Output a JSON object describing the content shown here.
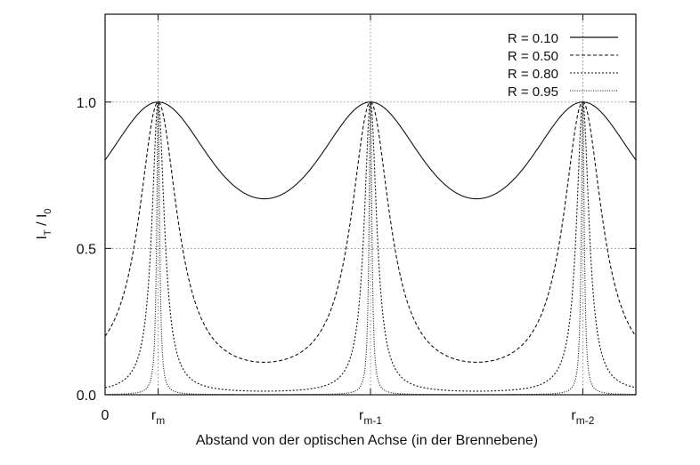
{
  "chart_data": {
    "type": "line",
    "xlabel": "Abstand von der optischen Achse (in der Brennebene)",
    "ylabel": {
      "base": "I",
      "sub1": "T",
      "mid": " / I",
      "sub2": "0"
    },
    "xlim": [
      0,
      2.5
    ],
    "ylim": [
      0,
      1.3
    ],
    "grid": true,
    "legend_position": "top-right",
    "x_ticks": [
      {
        "value": 0,
        "base": "0",
        "sub": ""
      },
      {
        "value": 0.25,
        "base": "r",
        "sub": "m"
      },
      {
        "value": 1.25,
        "base": "r",
        "sub": "m-1"
      },
      {
        "value": 2.25,
        "base": "r",
        "sub": "m-2"
      }
    ],
    "y_ticks": [
      {
        "value": 0,
        "label": "0.0"
      },
      {
        "value": 0.5,
        "label": "0.5"
      },
      {
        "value": 1.0,
        "label": "1.0"
      }
    ],
    "peaks_x": [
      0.25,
      1.25,
      2.25
    ],
    "period": 1.0,
    "series": [
      {
        "name": "R = 0.10",
        "R": 0.1,
        "dash": "none",
        "stroke_width": 1.2
      },
      {
        "name": "R = 0.50",
        "R": 0.5,
        "dash": "4 2.5",
        "stroke_width": 1.0
      },
      {
        "name": "R = 0.80",
        "R": 0.8,
        "dash": "2 2",
        "stroke_width": 1.0
      },
      {
        "name": "R = 0.95",
        "R": 0.95,
        "dash": "1 1.6",
        "stroke_width": 1.0
      }
    ],
    "colors": {
      "line": "#111111",
      "grid": "#777777"
    }
  }
}
